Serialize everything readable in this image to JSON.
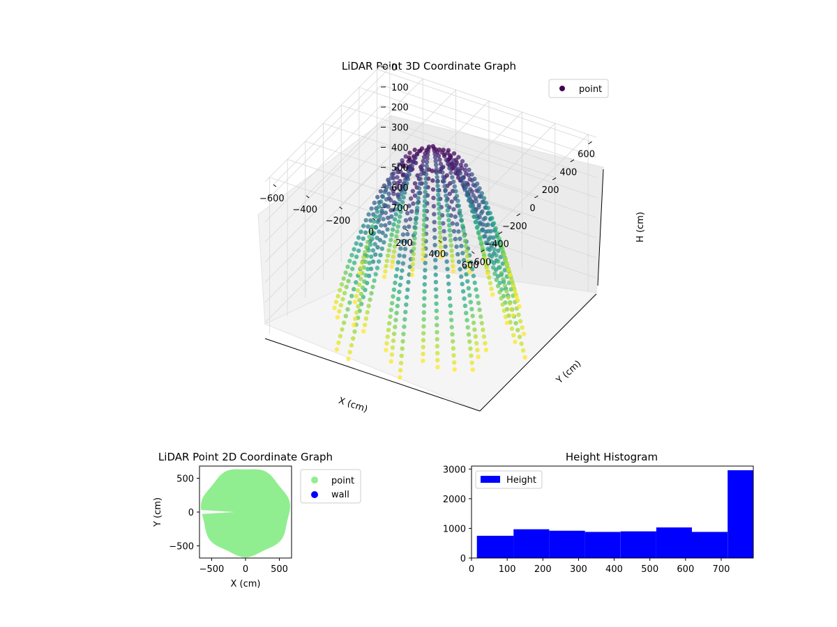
{
  "chart_data": [
    {
      "type": "scatter",
      "projection": "3d",
      "title": "LiDAR Point 3D Coordinate Graph",
      "xlabel": "X (cm)",
      "ylabel": "Y (cm)",
      "zlabel": "H (cm)",
      "xlim": [
        -650,
        650
      ],
      "ylim": [
        -650,
        650
      ],
      "zlim": [
        0,
        780
      ],
      "z_inverted": true,
      "xticks": [
        -600,
        -400,
        -200,
        0,
        200,
        400,
        600
      ],
      "yticks": [
        -600,
        -400,
        -200,
        0,
        200,
        400,
        600
      ],
      "zticks": [
        0,
        100,
        200,
        300,
        400,
        500,
        600,
        700
      ],
      "legend": {
        "entries": [
          "point"
        ],
        "placement": "top-right"
      },
      "colormap": "viridis",
      "color_by": "height",
      "series": [
        {
          "name": "point",
          "description_of_shape": "radial scan arcs: distance grows with depth, forming a bowl that opens upward (H inverted)",
          "scan_lines": 36,
          "distance_range": [
            380,
            620
          ],
          "height_range": [
            0,
            780
          ]
        }
      ],
      "grid": true
    },
    {
      "type": "scatter",
      "title": "LiDAR Point 2D Coordinate Graph",
      "xlabel": "X (cm)",
      "ylabel": "Y (cm)",
      "xlim": [
        -680,
        680
      ],
      "ylim": [
        -680,
        680
      ],
      "xticks": [
        -500,
        0,
        500
      ],
      "yticks": [
        -500,
        0,
        500
      ],
      "legend": {
        "entries": [
          "point",
          "wall"
        ],
        "placement": "outside-right"
      },
      "series": [
        {
          "name": "point",
          "color": "#90ee90",
          "shape": "filled disc of radius about 650 cm with a narrow wedge gap on the left at Y≈0"
        },
        {
          "name": "wall",
          "color": "#0000ff",
          "points": []
        }
      ]
    },
    {
      "type": "bar",
      "subtype": "histogram",
      "title": "Height Histogram",
      "xlabel": "",
      "ylabel": "",
      "xlim": [
        0,
        790
      ],
      "ylim": [
        0,
        3100
      ],
      "xticks": [
        0,
        100,
        200,
        300,
        400,
        500,
        600,
        700
      ],
      "yticks": [
        0,
        1000,
        2000,
        3000
      ],
      "bin_edges": [
        15,
        118,
        218,
        318,
        418,
        518,
        618,
        718,
        790
      ],
      "values": [
        750,
        970,
        920,
        880,
        900,
        1030,
        880,
        2960
      ],
      "series": [
        {
          "name": "Height",
          "color": "#0000ff"
        }
      ],
      "legend": {
        "entries": [
          "Height"
        ],
        "placement": "top-left"
      }
    }
  ]
}
